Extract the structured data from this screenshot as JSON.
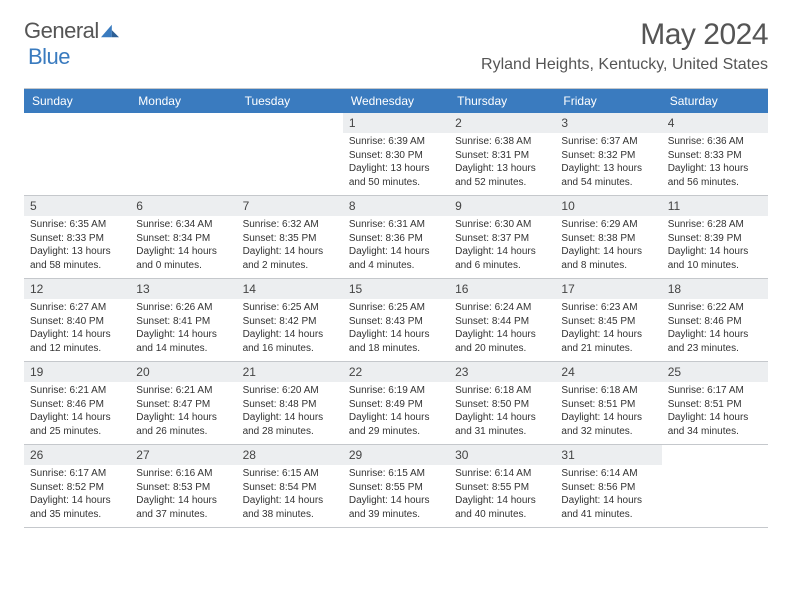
{
  "logo": {
    "text1": "General",
    "text2": "Blue"
  },
  "title": "May 2024",
  "location": "Ryland Heights, Kentucky, United States",
  "colors": {
    "header_bg": "#3a7bbf",
    "header_text": "#ffffff",
    "daybar_bg": "#eceef0",
    "border": "#c5c8cc",
    "body_text": "#333333",
    "title_text": "#555555"
  },
  "day_headers": [
    "Sunday",
    "Monday",
    "Tuesday",
    "Wednesday",
    "Thursday",
    "Friday",
    "Saturday"
  ],
  "weeks": [
    [
      {
        "num": "",
        "sunrise": "",
        "sunset": "",
        "daylight": ""
      },
      {
        "num": "",
        "sunrise": "",
        "sunset": "",
        "daylight": ""
      },
      {
        "num": "",
        "sunrise": "",
        "sunset": "",
        "daylight": ""
      },
      {
        "num": "1",
        "sunrise": "Sunrise: 6:39 AM",
        "sunset": "Sunset: 8:30 PM",
        "daylight": "Daylight: 13 hours and 50 minutes."
      },
      {
        "num": "2",
        "sunrise": "Sunrise: 6:38 AM",
        "sunset": "Sunset: 8:31 PM",
        "daylight": "Daylight: 13 hours and 52 minutes."
      },
      {
        "num": "3",
        "sunrise": "Sunrise: 6:37 AM",
        "sunset": "Sunset: 8:32 PM",
        "daylight": "Daylight: 13 hours and 54 minutes."
      },
      {
        "num": "4",
        "sunrise": "Sunrise: 6:36 AM",
        "sunset": "Sunset: 8:33 PM",
        "daylight": "Daylight: 13 hours and 56 minutes."
      }
    ],
    [
      {
        "num": "5",
        "sunrise": "Sunrise: 6:35 AM",
        "sunset": "Sunset: 8:33 PM",
        "daylight": "Daylight: 13 hours and 58 minutes."
      },
      {
        "num": "6",
        "sunrise": "Sunrise: 6:34 AM",
        "sunset": "Sunset: 8:34 PM",
        "daylight": "Daylight: 14 hours and 0 minutes."
      },
      {
        "num": "7",
        "sunrise": "Sunrise: 6:32 AM",
        "sunset": "Sunset: 8:35 PM",
        "daylight": "Daylight: 14 hours and 2 minutes."
      },
      {
        "num": "8",
        "sunrise": "Sunrise: 6:31 AM",
        "sunset": "Sunset: 8:36 PM",
        "daylight": "Daylight: 14 hours and 4 minutes."
      },
      {
        "num": "9",
        "sunrise": "Sunrise: 6:30 AM",
        "sunset": "Sunset: 8:37 PM",
        "daylight": "Daylight: 14 hours and 6 minutes."
      },
      {
        "num": "10",
        "sunrise": "Sunrise: 6:29 AM",
        "sunset": "Sunset: 8:38 PM",
        "daylight": "Daylight: 14 hours and 8 minutes."
      },
      {
        "num": "11",
        "sunrise": "Sunrise: 6:28 AM",
        "sunset": "Sunset: 8:39 PM",
        "daylight": "Daylight: 14 hours and 10 minutes."
      }
    ],
    [
      {
        "num": "12",
        "sunrise": "Sunrise: 6:27 AM",
        "sunset": "Sunset: 8:40 PM",
        "daylight": "Daylight: 14 hours and 12 minutes."
      },
      {
        "num": "13",
        "sunrise": "Sunrise: 6:26 AM",
        "sunset": "Sunset: 8:41 PM",
        "daylight": "Daylight: 14 hours and 14 minutes."
      },
      {
        "num": "14",
        "sunrise": "Sunrise: 6:25 AM",
        "sunset": "Sunset: 8:42 PM",
        "daylight": "Daylight: 14 hours and 16 minutes."
      },
      {
        "num": "15",
        "sunrise": "Sunrise: 6:25 AM",
        "sunset": "Sunset: 8:43 PM",
        "daylight": "Daylight: 14 hours and 18 minutes."
      },
      {
        "num": "16",
        "sunrise": "Sunrise: 6:24 AM",
        "sunset": "Sunset: 8:44 PM",
        "daylight": "Daylight: 14 hours and 20 minutes."
      },
      {
        "num": "17",
        "sunrise": "Sunrise: 6:23 AM",
        "sunset": "Sunset: 8:45 PM",
        "daylight": "Daylight: 14 hours and 21 minutes."
      },
      {
        "num": "18",
        "sunrise": "Sunrise: 6:22 AM",
        "sunset": "Sunset: 8:46 PM",
        "daylight": "Daylight: 14 hours and 23 minutes."
      }
    ],
    [
      {
        "num": "19",
        "sunrise": "Sunrise: 6:21 AM",
        "sunset": "Sunset: 8:46 PM",
        "daylight": "Daylight: 14 hours and 25 minutes."
      },
      {
        "num": "20",
        "sunrise": "Sunrise: 6:21 AM",
        "sunset": "Sunset: 8:47 PM",
        "daylight": "Daylight: 14 hours and 26 minutes."
      },
      {
        "num": "21",
        "sunrise": "Sunrise: 6:20 AM",
        "sunset": "Sunset: 8:48 PM",
        "daylight": "Daylight: 14 hours and 28 minutes."
      },
      {
        "num": "22",
        "sunrise": "Sunrise: 6:19 AM",
        "sunset": "Sunset: 8:49 PM",
        "daylight": "Daylight: 14 hours and 29 minutes."
      },
      {
        "num": "23",
        "sunrise": "Sunrise: 6:18 AM",
        "sunset": "Sunset: 8:50 PM",
        "daylight": "Daylight: 14 hours and 31 minutes."
      },
      {
        "num": "24",
        "sunrise": "Sunrise: 6:18 AM",
        "sunset": "Sunset: 8:51 PM",
        "daylight": "Daylight: 14 hours and 32 minutes."
      },
      {
        "num": "25",
        "sunrise": "Sunrise: 6:17 AM",
        "sunset": "Sunset: 8:51 PM",
        "daylight": "Daylight: 14 hours and 34 minutes."
      }
    ],
    [
      {
        "num": "26",
        "sunrise": "Sunrise: 6:17 AM",
        "sunset": "Sunset: 8:52 PM",
        "daylight": "Daylight: 14 hours and 35 minutes."
      },
      {
        "num": "27",
        "sunrise": "Sunrise: 6:16 AM",
        "sunset": "Sunset: 8:53 PM",
        "daylight": "Daylight: 14 hours and 37 minutes."
      },
      {
        "num": "28",
        "sunrise": "Sunrise: 6:15 AM",
        "sunset": "Sunset: 8:54 PM",
        "daylight": "Daylight: 14 hours and 38 minutes."
      },
      {
        "num": "29",
        "sunrise": "Sunrise: 6:15 AM",
        "sunset": "Sunset: 8:55 PM",
        "daylight": "Daylight: 14 hours and 39 minutes."
      },
      {
        "num": "30",
        "sunrise": "Sunrise: 6:14 AM",
        "sunset": "Sunset: 8:55 PM",
        "daylight": "Daylight: 14 hours and 40 minutes."
      },
      {
        "num": "31",
        "sunrise": "Sunrise: 6:14 AM",
        "sunset": "Sunset: 8:56 PM",
        "daylight": "Daylight: 14 hours and 41 minutes."
      },
      {
        "num": "",
        "sunrise": "",
        "sunset": "",
        "daylight": ""
      }
    ]
  ]
}
